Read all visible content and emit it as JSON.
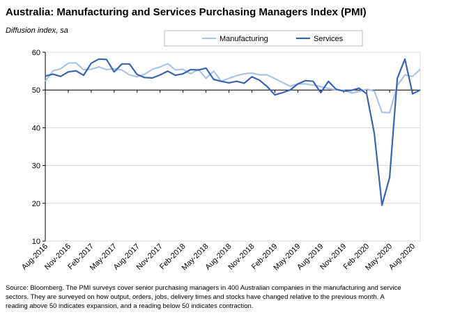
{
  "chart_data": {
    "type": "line",
    "title": "Australia:  Manufacturing and Services Purchasing Managers Index (PMI)",
    "subtitle": "Diffusion index, sa",
    "note_lines": [
      "Source: Bloomberg.  The PMI surveys cover senior purchasing managers in 400 Australian companies in the manufacturing and service",
      "sectors.  They are surveyed on how output, orders, jobs, delivery times and stocks have changed relative to the previous month.  A",
      "reading above 50 indicates expansion, and a reading below 50 indicates contraction."
    ],
    "categories": [
      "Aug-2016",
      null,
      null,
      "Nov-2016",
      null,
      null,
      "Feb-2017",
      null,
      null,
      "May-2017",
      null,
      null,
      "Aug-2017",
      null,
      null,
      "Nov-2017",
      null,
      null,
      "Feb-2018",
      null,
      null,
      "May-2018",
      null,
      null,
      "Aug-2018",
      null,
      null,
      "Nov-2018",
      null,
      null,
      "Feb-2019",
      null,
      null,
      "May-2019",
      null,
      null,
      "Aug-2019",
      null,
      null,
      "Nov-2019",
      null,
      null,
      "Feb-2020",
      null,
      null,
      "May-2020",
      null,
      null,
      "Aug-2020",
      null
    ],
    "series": [
      {
        "name": "Manufacturing",
        "color": "#a9c4e4",
        "values": [
          52.3,
          55.1,
          55.6,
          57.1,
          57.2,
          55.4,
          55.5,
          56.1,
          55.4,
          55.6,
          55.3,
          54.0,
          53.5,
          54.2,
          55.5,
          56.1,
          57.0,
          55.3,
          55.5,
          54.3,
          55.5,
          53.1,
          55.0,
          52.3,
          53.1,
          53.8,
          54.3,
          54.5,
          54.0,
          54.0,
          53.0,
          52.0,
          51.0,
          51.6,
          51.6,
          51.3,
          50.9,
          50.4,
          50.0,
          49.9,
          49.2,
          49.6,
          50.2,
          49.7,
          44.1,
          44.0,
          51.2,
          54.0,
          53.6,
          55.5
        ]
      },
      {
        "name": "Services",
        "color": "#3a64b0",
        "values": [
          53.7,
          54.2,
          53.6,
          54.8,
          55.1,
          53.9,
          57.1,
          58.2,
          58.1,
          54.8,
          56.9,
          56.9,
          54.1,
          53.3,
          53.2,
          54.0,
          55.0,
          53.9,
          54.3,
          55.4,
          55.3,
          55.8,
          52.8,
          52.3,
          51.9,
          52.3,
          51.8,
          53.5,
          52.6,
          50.9,
          48.7,
          49.3,
          50.0,
          51.6,
          52.5,
          52.3,
          49.3,
          52.3,
          50.2,
          49.7,
          49.9,
          50.5,
          49.0,
          38.5,
          19.5,
          26.9,
          53.1,
          58.2,
          49.0,
          50.0
        ]
      }
    ],
    "ylim": [
      10,
      60
    ],
    "yticks": [
      10,
      20,
      30,
      40,
      50,
      60
    ],
    "xaxis_at": 50,
    "grid": true,
    "legend": "top"
  }
}
